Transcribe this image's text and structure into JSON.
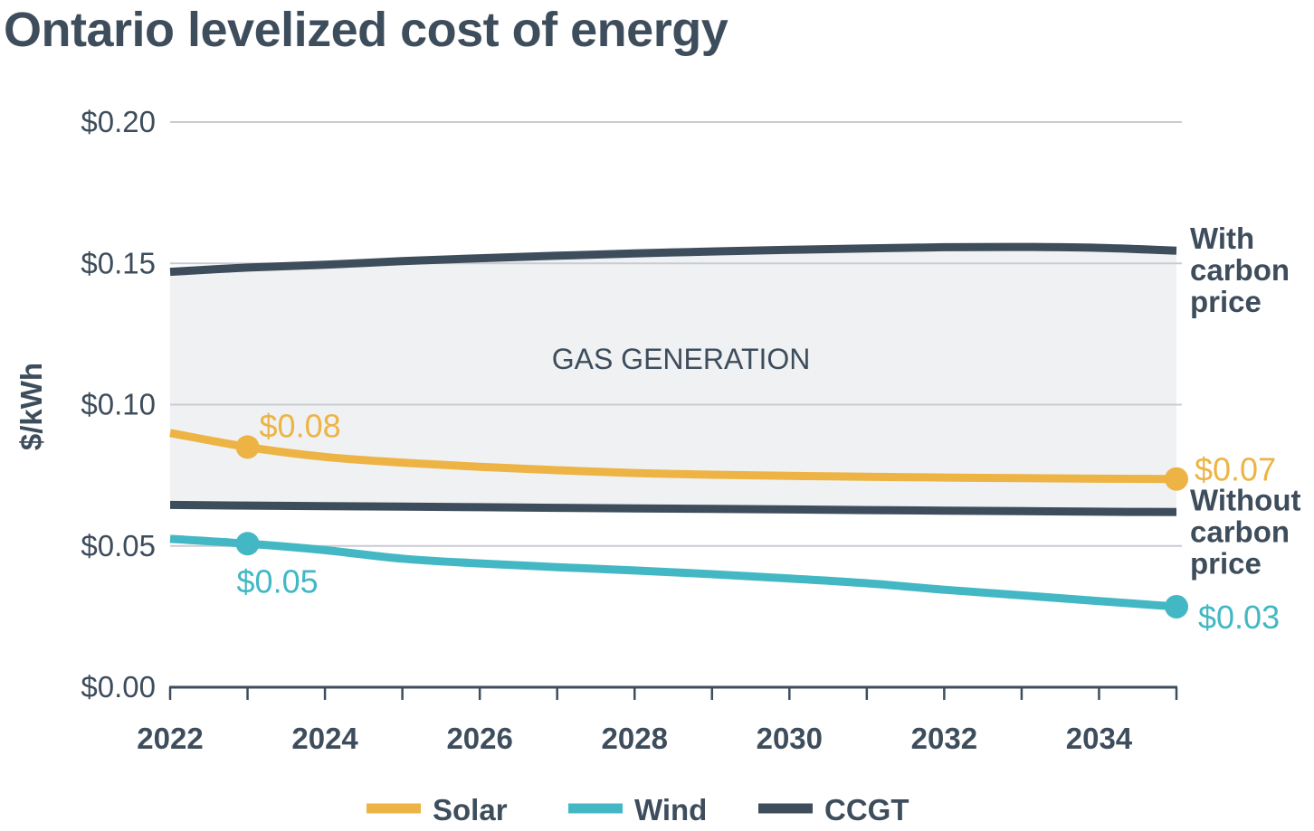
{
  "chart_data": {
    "type": "line",
    "title": "Ontario levelized cost of energy",
    "ylabel": "$/kWh",
    "xlabel": "",
    "xlim": [
      2022,
      2035
    ],
    "ylim": [
      0,
      0.2
    ],
    "yticks": [
      0,
      0.05,
      0.1,
      0.15,
      0.2
    ],
    "ytick_labels": [
      "$0.00",
      "$0.05",
      "$0.10",
      "$0.15",
      "$0.20"
    ],
    "xticks": [
      2022,
      2024,
      2026,
      2028,
      2030,
      2032,
      2034
    ],
    "xtick_labels": [
      "2022",
      "2024",
      "2026",
      "2028",
      "2030",
      "2032",
      "2034"
    ],
    "grid": true,
    "legend_position": "bottom",
    "band_label": "GAS GENERATION",
    "series": [
      {
        "name": "Solar",
        "color": "#edb445",
        "x": [
          2022,
          2023,
          2024,
          2025,
          2026,
          2027,
          2028,
          2029,
          2030,
          2031,
          2032,
          2033,
          2034,
          2035
        ],
        "y": [
          0.09,
          0.085,
          0.0815,
          0.0795,
          0.078,
          0.0768,
          0.0758,
          0.0752,
          0.0748,
          0.0745,
          0.0742,
          0.074,
          0.0738,
          0.0737
        ],
        "labels": [
          {
            "x": 2023,
            "y": 0.085,
            "text": "$0.08",
            "pos": "above-right"
          },
          {
            "x": 2035,
            "y": 0.0737,
            "text": "$0.07",
            "pos": "right"
          }
        ]
      },
      {
        "name": "Wind",
        "color": "#43b8c4",
        "x": [
          2022,
          2023,
          2024,
          2025,
          2026,
          2027,
          2028,
          2029,
          2030,
          2031,
          2032,
          2033,
          2034,
          2035
        ],
        "y": [
          0.0525,
          0.0508,
          0.0485,
          0.0455,
          0.0438,
          0.0425,
          0.0413,
          0.04,
          0.0385,
          0.0368,
          0.0345,
          0.0325,
          0.0305,
          0.0285
        ],
        "labels": [
          {
            "x": 2023,
            "y": 0.0508,
            "text": "$0.05",
            "pos": "below"
          },
          {
            "x": 2035,
            "y": 0.0285,
            "text": "$0.03",
            "pos": "below-right"
          }
        ]
      },
      {
        "name": "CCGT",
        "color": "#3e4d5c",
        "lines": [
          {
            "annotation": [
              "With",
              "carbon",
              "price"
            ],
            "x": [
              2022,
              2023,
              2024,
              2025,
              2026,
              2027,
              2028,
              2029,
              2030,
              2031,
              2032,
              2033,
              2034,
              2035
            ],
            "y": [
              0.147,
              0.1485,
              0.1495,
              0.1508,
              0.1518,
              0.1527,
              0.1535,
              0.1542,
              0.1548,
              0.1553,
              0.1557,
              0.1558,
              0.1555,
              0.1545
            ]
          },
          {
            "annotation": [
              "Without",
              "carbon",
              "price"
            ],
            "x": [
              2022,
              2023,
              2024,
              2025,
              2026,
              2027,
              2028,
              2029,
              2030,
              2031,
              2032,
              2033,
              2034,
              2035
            ],
            "y": [
              0.0645,
              0.0643,
              0.0641,
              0.0639,
              0.0637,
              0.0635,
              0.0633,
              0.0631,
              0.0629,
              0.0627,
              0.0625,
              0.0623,
              0.0621,
              0.062
            ]
          }
        ]
      }
    ],
    "colors": {
      "text": "#3e4d5c",
      "grid": "#c8ccd1",
      "band": "#eff1f3"
    }
  }
}
